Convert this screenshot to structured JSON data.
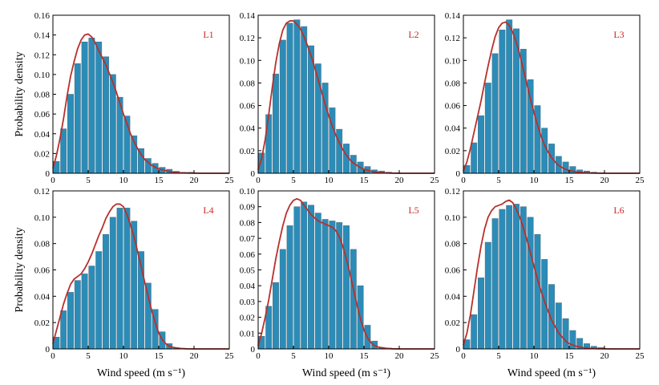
{
  "colors": {
    "bar_fill": "#2b8cb8",
    "bar_edge": "#4a6f82",
    "curve": "#b8302c",
    "panel_label": "#cc2a26",
    "axis": "#000000"
  },
  "figure": {
    "ylabel": "Probability density",
    "xlabel": "Wind speed (m s⁻¹)"
  },
  "chart_data": [
    {
      "type": "bar",
      "label": "L1",
      "xlim": [
        0,
        25
      ],
      "ylim": [
        0,
        0.16
      ],
      "xticks": [
        0,
        5,
        10,
        15,
        20,
        25
      ],
      "yticks": [
        0,
        0.02,
        0.04,
        0.06,
        0.08,
        0.1,
        0.12,
        0.14,
        0.16
      ],
      "ytick_labels": [
        "0",
        "0.02",
        "0.04",
        "0.06",
        "0.08",
        "0.10",
        "0.12",
        "0.14",
        "0.16"
      ],
      "bin_centers": [
        0.5,
        1.5,
        2.5,
        3.5,
        4.5,
        5.5,
        6.5,
        7.5,
        8.5,
        9.5,
        10.5,
        11.5,
        12.5,
        13.5,
        14.5,
        15.5,
        16.5,
        17.5,
        18.5,
        19.5
      ],
      "values": [
        0.012,
        0.045,
        0.08,
        0.111,
        0.133,
        0.137,
        0.133,
        0.118,
        0.1,
        0.077,
        0.058,
        0.038,
        0.025,
        0.015,
        0.01,
        0.006,
        0.004,
        0.002,
        0.001,
        0.001
      ],
      "curve_x": [
        0,
        0.5,
        1,
        1.5,
        2,
        2.5,
        3,
        3.5,
        4,
        4.5,
        5,
        5.5,
        6,
        6.5,
        7,
        7.5,
        8,
        8.5,
        9,
        9.5,
        10,
        10.5,
        11,
        11.5,
        12,
        12.5,
        13,
        13.5,
        14,
        14.5,
        15,
        16,
        17,
        18,
        19,
        20,
        21,
        22,
        23,
        24,
        25
      ],
      "curve_y": [
        0.005,
        0.018,
        0.035,
        0.055,
        0.078,
        0.098,
        0.113,
        0.126,
        0.135,
        0.14,
        0.141,
        0.138,
        0.132,
        0.124,
        0.117,
        0.11,
        0.101,
        0.092,
        0.082,
        0.071,
        0.06,
        0.05,
        0.04,
        0.032,
        0.025,
        0.019,
        0.014,
        0.011,
        0.008,
        0.006,
        0.0045,
        0.0025,
        0.0012,
        0.0005,
        0.0002,
        0.0001,
        0,
        0,
        0,
        0,
        0
      ]
    },
    {
      "type": "bar",
      "label": "L2",
      "xlim": [
        0,
        25
      ],
      "ylim": [
        0,
        0.14
      ],
      "xticks": [
        0,
        5,
        10,
        15,
        20,
        25
      ],
      "yticks": [
        0,
        0.02,
        0.04,
        0.06,
        0.08,
        0.1,
        0.12,
        0.14
      ],
      "ytick_labels": [
        "0",
        "0.02",
        "0.04",
        "0.06",
        "0.08",
        "0.10",
        "0.12",
        "0.14"
      ],
      "bin_centers": [
        0.5,
        1.5,
        2.5,
        3.5,
        4.5,
        5.5,
        6.5,
        7.5,
        8.5,
        9.5,
        10.5,
        11.5,
        12.5,
        13.5,
        14.5,
        15.5,
        16.5,
        17.5,
        18.5,
        19.5
      ],
      "values": [
        0.018,
        0.052,
        0.088,
        0.118,
        0.133,
        0.136,
        0.13,
        0.113,
        0.097,
        0.08,
        0.058,
        0.039,
        0.026,
        0.016,
        0.01,
        0.006,
        0.003,
        0.002,
        0.001,
        0.0005
      ],
      "curve_x": [
        0,
        0.5,
        1,
        1.5,
        2,
        2.5,
        3,
        3.5,
        4,
        4.5,
        5,
        5.5,
        6,
        6.5,
        7,
        7.5,
        8,
        8.5,
        9,
        9.5,
        10,
        10.5,
        11,
        11.5,
        12,
        12.5,
        13,
        13.5,
        14,
        14.5,
        15,
        16,
        17,
        18,
        19,
        20,
        21,
        22,
        23,
        24,
        25
      ],
      "curve_y": [
        0.003,
        0.013,
        0.03,
        0.052,
        0.076,
        0.098,
        0.115,
        0.127,
        0.133,
        0.135,
        0.135,
        0.132,
        0.128,
        0.121,
        0.113,
        0.104,
        0.094,
        0.083,
        0.072,
        0.061,
        0.051,
        0.042,
        0.034,
        0.027,
        0.021,
        0.016,
        0.012,
        0.009,
        0.007,
        0.005,
        0.0035,
        0.0018,
        0.0008,
        0.0003,
        0.0001,
        0,
        0,
        0,
        0,
        0,
        0
      ]
    },
    {
      "type": "bar",
      "label": "L3",
      "xlim": [
        0,
        25
      ],
      "ylim": [
        0,
        0.14
      ],
      "xticks": [
        0,
        5,
        10,
        15,
        20,
        25
      ],
      "yticks": [
        0,
        0.02,
        0.04,
        0.06,
        0.08,
        0.1,
        0.12,
        0.14
      ],
      "ytick_labels": [
        "0",
        "0.02",
        "0.04",
        "0.06",
        "0.08",
        "0.10",
        "0.12",
        "0.14"
      ],
      "bin_centers": [
        0.5,
        1.5,
        2.5,
        3.5,
        4.5,
        5.5,
        6.5,
        7.5,
        8.5,
        9.5,
        10.5,
        11.5,
        12.5,
        13.5,
        14.5,
        15.5,
        16.5,
        17.5,
        18.5,
        19.5
      ],
      "values": [
        0.007,
        0.027,
        0.051,
        0.08,
        0.106,
        0.127,
        0.136,
        0.128,
        0.11,
        0.083,
        0.06,
        0.04,
        0.026,
        0.015,
        0.01,
        0.006,
        0.003,
        0.002,
        0.001,
        0.0005
      ],
      "curve_x": [
        0,
        0.5,
        1,
        1.5,
        2,
        2.5,
        3,
        3.5,
        4,
        4.5,
        5,
        5.5,
        6,
        6.5,
        7,
        7.5,
        8,
        8.5,
        9,
        9.5,
        10,
        10.5,
        11,
        11.5,
        12,
        12.5,
        13,
        13.5,
        14,
        14.5,
        15,
        16,
        17,
        18,
        19,
        20,
        21,
        22,
        23,
        24,
        25
      ],
      "curve_y": [
        0.002,
        0.01,
        0.022,
        0.036,
        0.05,
        0.064,
        0.08,
        0.095,
        0.109,
        0.121,
        0.129,
        0.133,
        0.134,
        0.131,
        0.125,
        0.116,
        0.105,
        0.092,
        0.079,
        0.066,
        0.054,
        0.043,
        0.033,
        0.025,
        0.019,
        0.014,
        0.01,
        0.007,
        0.005,
        0.0035,
        0.0025,
        0.0012,
        0.0005,
        0.0002,
        0.0001,
        0,
        0,
        0,
        0,
        0,
        0
      ]
    },
    {
      "type": "bar",
      "label": "L4",
      "xlim": [
        0,
        25
      ],
      "ylim": [
        0,
        0.12
      ],
      "xticks": [
        0,
        5,
        10,
        15,
        20,
        25
      ],
      "yticks": [
        0,
        0.02,
        0.04,
        0.06,
        0.08,
        0.1,
        0.12
      ],
      "ytick_labels": [
        "0",
        "0.02",
        "0.04",
        "0.06",
        "0.08",
        "0.10",
        "0.12"
      ],
      "bin_centers": [
        0.5,
        1.5,
        2.5,
        3.5,
        4.5,
        5.5,
        6.5,
        7.5,
        8.5,
        9.5,
        10.5,
        11.5,
        12.5,
        13.5,
        14.5,
        15.5,
        16.5,
        17.5,
        18.5,
        19.5
      ],
      "values": [
        0.009,
        0.029,
        0.043,
        0.052,
        0.057,
        0.063,
        0.074,
        0.087,
        0.1,
        0.107,
        0.107,
        0.097,
        0.074,
        0.05,
        0.03,
        0.013,
        0.004,
        0.001,
        0.0005,
        0.0002
      ],
      "curve_x": [
        0,
        0.5,
        1,
        1.5,
        2,
        2.5,
        3,
        3.5,
        4,
        4.5,
        5,
        5.5,
        6,
        6.5,
        7,
        7.5,
        8,
        8.5,
        9,
        9.5,
        10,
        10.5,
        11,
        11.5,
        12,
        12.5,
        13,
        13.5,
        14,
        14.5,
        15,
        15.5,
        16,
        16.5,
        17,
        18,
        19,
        20,
        21,
        22,
        23,
        24,
        25
      ],
      "curve_y": [
        0.004,
        0.014,
        0.024,
        0.034,
        0.042,
        0.049,
        0.053,
        0.055,
        0.057,
        0.061,
        0.066,
        0.072,
        0.079,
        0.086,
        0.092,
        0.099,
        0.104,
        0.108,
        0.11,
        0.11,
        0.108,
        0.102,
        0.094,
        0.085,
        0.074,
        0.063,
        0.051,
        0.04,
        0.029,
        0.02,
        0.012,
        0.007,
        0.004,
        0.002,
        0.0012,
        0.0004,
        0.0001,
        0,
        0,
        0,
        0,
        0,
        0
      ]
    },
    {
      "type": "bar",
      "label": "L5",
      "xlim": [
        0,
        25
      ],
      "ylim": [
        0,
        0.1
      ],
      "xticks": [
        0,
        5,
        10,
        15,
        20,
        25
      ],
      "yticks": [
        0,
        0.01,
        0.02,
        0.03,
        0.04,
        0.05,
        0.06,
        0.07,
        0.08,
        0.09,
        0.1
      ],
      "ytick_labels": [
        "0",
        "0.01",
        "0.02",
        "0.03",
        "0.04",
        "0.05",
        "0.06",
        "0.07",
        "0.08",
        "0.09",
        "0.10"
      ],
      "bin_centers": [
        0.5,
        1.5,
        2.5,
        3.5,
        4.5,
        5.5,
        6.5,
        7.5,
        8.5,
        9.5,
        10.5,
        11.5,
        12.5,
        13.5,
        14.5,
        15.5,
        16.5,
        17.5,
        18.5,
        19.5
      ],
      "values": [
        0.008,
        0.027,
        0.042,
        0.063,
        0.078,
        0.09,
        0.093,
        0.091,
        0.086,
        0.082,
        0.081,
        0.08,
        0.078,
        0.063,
        0.04,
        0.015,
        0.005,
        0.001,
        0.0005,
        0.0002
      ],
      "curve_x": [
        0,
        0.5,
        1,
        1.5,
        2,
        2.5,
        3,
        3.5,
        4,
        4.5,
        5,
        5.5,
        6,
        6.5,
        7,
        7.5,
        8,
        8.5,
        9,
        9.5,
        10,
        10.5,
        11,
        11.5,
        12,
        12.5,
        13,
        13.5,
        14,
        14.5,
        15,
        15.5,
        16,
        16.5,
        17,
        18,
        19,
        20,
        21,
        22,
        23,
        24,
        25
      ],
      "curve_y": [
        0.002,
        0.01,
        0.02,
        0.031,
        0.044,
        0.057,
        0.068,
        0.078,
        0.086,
        0.091,
        0.094,
        0.095,
        0.094,
        0.091,
        0.088,
        0.085,
        0.083,
        0.081,
        0.08,
        0.079,
        0.078,
        0.077,
        0.075,
        0.071,
        0.065,
        0.057,
        0.048,
        0.038,
        0.028,
        0.019,
        0.012,
        0.007,
        0.004,
        0.002,
        0.0012,
        0.0004,
        0.0001,
        0,
        0,
        0,
        0,
        0,
        0
      ]
    },
    {
      "type": "bar",
      "label": "L6",
      "xlim": [
        0,
        25
      ],
      "ylim": [
        0,
        0.12
      ],
      "xticks": [
        0,
        5,
        10,
        15,
        20,
        25
      ],
      "yticks": [
        0,
        0.02,
        0.04,
        0.06,
        0.08,
        0.1,
        0.12
      ],
      "ytick_labels": [
        "0",
        "0.02",
        "0.04",
        "0.06",
        "0.08",
        "0.10",
        "0.12"
      ],
      "bin_centers": [
        0.5,
        1.5,
        2.5,
        3.5,
        4.5,
        5.5,
        6.5,
        7.5,
        8.5,
        9.5,
        10.5,
        11.5,
        12.5,
        13.5,
        14.5,
        15.5,
        16.5,
        17.5,
        18.5,
        19.5
      ],
      "values": [
        0.007,
        0.026,
        0.054,
        0.081,
        0.099,
        0.106,
        0.109,
        0.11,
        0.108,
        0.1,
        0.087,
        0.068,
        0.049,
        0.035,
        0.023,
        0.014,
        0.008,
        0.004,
        0.002,
        0.001
      ],
      "curve_x": [
        0,
        0.5,
        1,
        1.5,
        2,
        2.5,
        3,
        3.5,
        4,
        4.5,
        5,
        5.5,
        6,
        6.5,
        7,
        7.5,
        8,
        8.5,
        9,
        9.5,
        10,
        10.5,
        11,
        11.5,
        12,
        12.5,
        13,
        13.5,
        14,
        14.5,
        15,
        16,
        17,
        18,
        19,
        20,
        21,
        22,
        23,
        24,
        25
      ],
      "curve_y": [
        0.003,
        0.012,
        0.026,
        0.044,
        0.062,
        0.078,
        0.091,
        0.1,
        0.105,
        0.108,
        0.109,
        0.11,
        0.112,
        0.113,
        0.111,
        0.106,
        0.1,
        0.092,
        0.083,
        0.073,
        0.063,
        0.053,
        0.044,
        0.036,
        0.029,
        0.022,
        0.017,
        0.012,
        0.009,
        0.006,
        0.004,
        0.002,
        0.001,
        0.0004,
        0.0002,
        0.0001,
        0,
        0,
        0,
        0,
        0
      ]
    }
  ]
}
